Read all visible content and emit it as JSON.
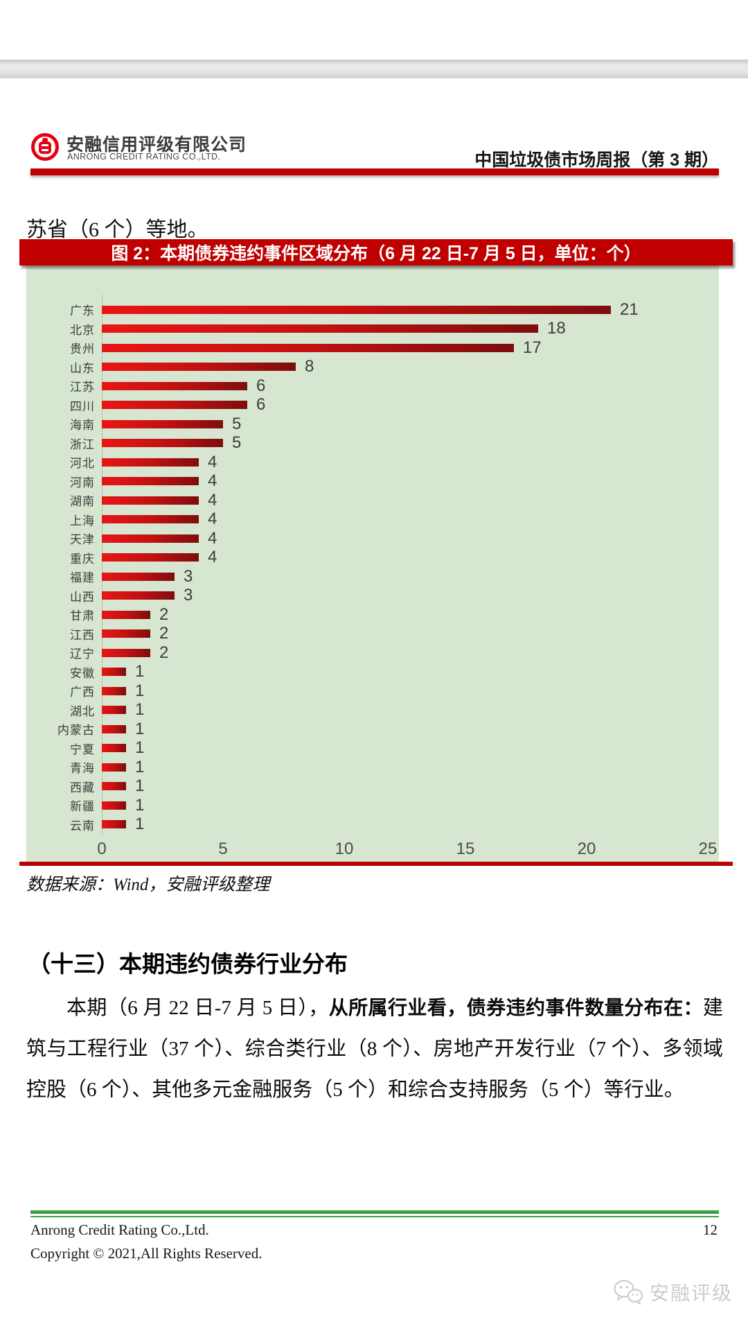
{
  "header": {
    "logo_cn": "安融信用评级有限公司",
    "logo_en": "ANRONG CREDIT RATING CO.,LTD.",
    "report_title": "中国垃圾债市场周报（第 3 期）"
  },
  "intro_text": "苏省（6 个）等地。",
  "figure": {
    "title": "图 2：本期债券违约事件区域分布（6 月 22 日-7 月 5 日，单位：个）",
    "source_note": "数据来源：Wind，安融评级整理"
  },
  "chart_data": {
    "type": "bar",
    "orientation": "horizontal",
    "title": "图 2：本期债券违约事件区域分布（6 月 22 日-7 月 5 日，单位：个）",
    "categories": [
      "广东",
      "北京",
      "贵州",
      "山东",
      "江苏",
      "四川",
      "海南",
      "浙江",
      "河北",
      "河南",
      "湖南",
      "上海",
      "天津",
      "重庆",
      "福建",
      "山西",
      "甘肃",
      "江西",
      "辽宁",
      "安徽",
      "广西",
      "湖北",
      "内蒙古",
      "宁夏",
      "青海",
      "西藏",
      "新疆",
      "云南"
    ],
    "values": [
      21,
      18,
      17,
      8,
      6,
      6,
      5,
      5,
      4,
      4,
      4,
      4,
      4,
      4,
      3,
      3,
      2,
      2,
      2,
      1,
      1,
      1,
      1,
      1,
      1,
      1,
      1,
      1
    ],
    "xlabel": "",
    "ylabel": "",
    "xlim": [
      0,
      25
    ],
    "x_ticks": [
      0,
      5,
      10,
      15,
      20,
      25
    ],
    "grid": false,
    "legend": false,
    "background_color": "#d6e6d1",
    "bar_gradient": [
      "#e81616",
      "#7e0d0d"
    ]
  },
  "section": {
    "heading": "（十三）本期违约债券行业分布",
    "paragraph": {
      "part1": "本期（6 月 22 日-7 月 5 日），",
      "part2_bold": "从所属行业看，债券违约事件数量分布在：",
      "part3": "建筑与工程行业（37 个）、综合类行业（8 个）、房地产开发行业（7 个）、多领域控股（6 个）、其他多元金融服务（5 个）和综合支持服务（5 个）等行业。"
    }
  },
  "footer": {
    "company": "Anrong Credit Rating Co.,Ltd.",
    "page_number": "12",
    "copyright": "Copyright © 2021,All Rights Reserved.",
    "watermark_text": "安融评级"
  },
  "colors": {
    "accent_red": "#c00000",
    "chart_background": "#d6e6d1",
    "footer_green": "#3a9e47",
    "logo_red": "#e60012"
  }
}
